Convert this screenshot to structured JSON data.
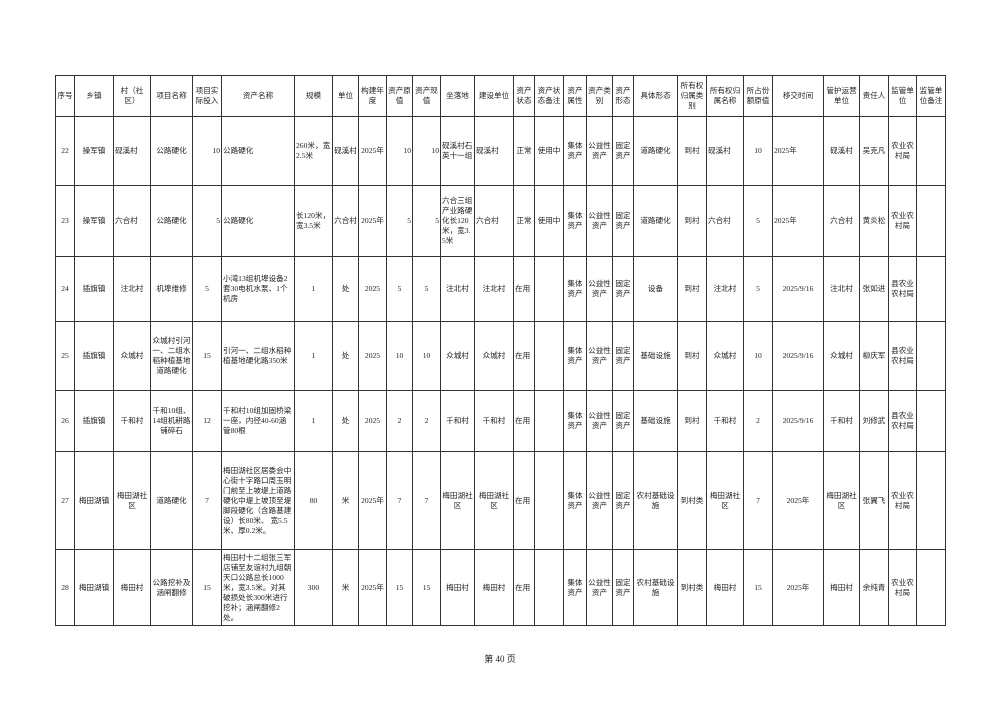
{
  "headers": [
    "序号",
    "乡镇",
    "村（社区）",
    "项目名称",
    "项目实际投入",
    "资产名称",
    "规模",
    "单位",
    "构建年度",
    "资产原值",
    "资产现值",
    "坐落地",
    "建设单位",
    "资产状态",
    "资产状态备注",
    "资产属性",
    "资产类别",
    "资产形态",
    "具体形态",
    "所有权归属类别",
    "所有权归属名称",
    "所占份额原值",
    "移交时间",
    "管护运营单位",
    "责任人",
    "监管单位",
    "监管单位备注"
  ],
  "rows": [
    [
      "22",
      "操军镇",
      "砚溪村",
      "公路硬化",
      "10",
      "公路硬化",
      "260米，宽2.5米",
      "砚溪村",
      "2025年",
      "10",
      "10",
      "砚溪村石英十一组",
      "砚溪村",
      "正常",
      "使用中",
      "集体资产",
      "公益性资产",
      "固定资产",
      "道路硬化",
      "到村",
      "砚溪村",
      "10",
      "2025年",
      "砚溪村",
      "吴克凡",
      "农业农村局",
      ""
    ],
    [
      "23",
      "操军镇",
      "六合村",
      "公路硬化",
      "5",
      "公路硬化",
      "长120米，宽3.5米",
      "六合村",
      "2025年",
      "5",
      "5",
      "六合三组产业路硬化长120米，宽3.5米",
      "六合村",
      "正常",
      "使用中",
      "集体资产",
      "公益性资产",
      "固定资产",
      "道路硬化",
      "到村",
      "六合村",
      "5",
      "2025年",
      "六合村",
      "黄炎松",
      "农业农村局",
      ""
    ],
    [
      "24",
      "插旗镇",
      "注北村",
      "机埠维修",
      "5",
      "小湾13组机埠设备2套30电机水泵、1个机房",
      "1",
      "处",
      "2025",
      "5",
      "5",
      "注北村",
      "注北村",
      "在用",
      "",
      "集体资产",
      "公益性资产",
      "固定资产",
      "设备",
      "到村",
      "注北村",
      "5",
      "2025/9/16",
      "注北村",
      "张如进",
      "县农业农村局",
      ""
    ],
    [
      "25",
      "插旗镇",
      "众城村",
      "众城村引河一、二组水稻种植基地道路硬化",
      "15",
      "引河一、二组水稻种植基地硬化路350米",
      "1",
      "处",
      "2025",
      "10",
      "10",
      "众城村",
      "众城村",
      "在用",
      "",
      "集体资产",
      "公益性资产",
      "固定资产",
      "基础设施",
      "到村",
      "众城村",
      "10",
      "2025/9/16",
      "众城村",
      "柳庆军",
      "县农业农村局",
      ""
    ],
    [
      "26",
      "插旗镇",
      "千和村",
      "千和10组、14组机耕路铺碎石",
      "12",
      "千和村10组加固桥梁一座，内径40-60涵管80根",
      "1",
      "处",
      "2025",
      "2",
      "2",
      "千和村",
      "千和村",
      "在用",
      "",
      "集体资产",
      "公益性资产",
      "固定资产",
      "基础设施",
      "到村",
      "千和村",
      "2",
      "2025/9/16",
      "千和村",
      "刘修武",
      "县农业农村局",
      ""
    ],
    [
      "27",
      "梅田湖镇",
      "梅田湖社区",
      "道路硬化",
      "7",
      "梅田湖社区居委会中心街十字路口周玉明门前至上坡堤上道路硬化中堤上坡顶至堤脚段硬化（含路基建设）长80米、 宽5.5米、厚0.2米。",
      "80",
      "米",
      "2025年",
      "7",
      "7",
      "梅田湖社区",
      "梅田湖社区",
      "在用",
      "",
      "集体资产",
      "公益性资产",
      "固定资产",
      "农村基础设施",
      "到村类",
      "梅田湖社区",
      "7",
      "2025年",
      "梅田湖社区",
      "张翼飞",
      "农业农村局",
      ""
    ],
    [
      "28",
      "梅田湖镇",
      "梅田村",
      "公路挖补及涵闸翻修",
      "15",
      "梅田村十二组张三军店铺至友谊村九组朝天口公路总长1000米，宽3.5米。对其破损处长300米进行挖补；涵闸翻修2处。",
      "300",
      "米",
      "2025年",
      "15",
      "15",
      "梅田村",
      "梅田村",
      "在用",
      "",
      "集体资产",
      "公益性资产",
      "固定资产",
      "农村基础设施",
      "到村类",
      "梅田村",
      "15",
      "2025年",
      "梅田村",
      "余纯青",
      "农业农村局",
      ""
    ]
  ],
  "footer": {
    "page_label": "第 40 页"
  }
}
